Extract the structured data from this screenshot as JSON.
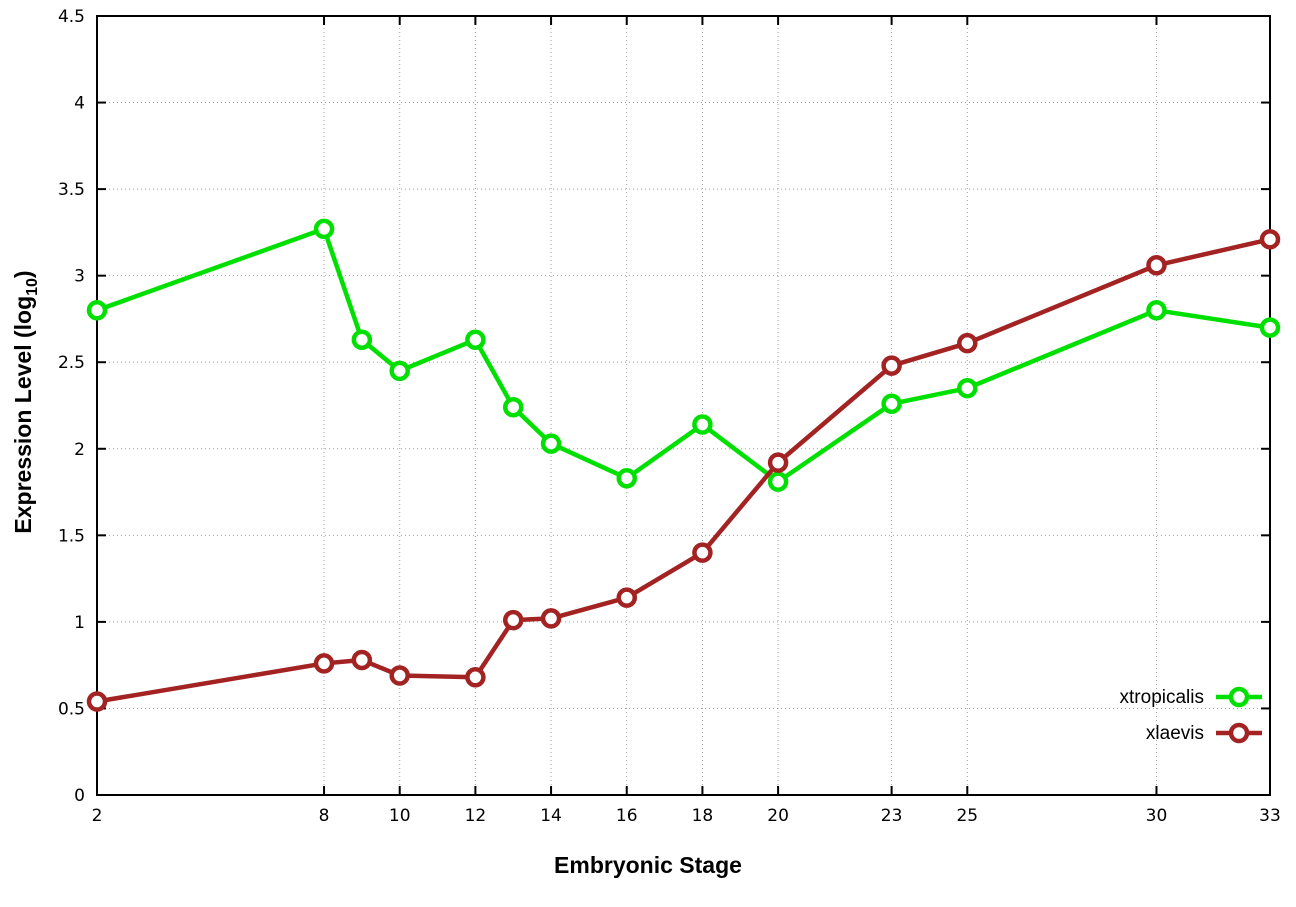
{
  "chart_data": {
    "type": "line",
    "title": "",
    "xlabel": "Embryonic Stage",
    "ylabel": "Expression Level (log10)",
    "ylabel_parts": {
      "pre": "Expression Level (log",
      "sub": "10",
      "post": ")"
    },
    "xlim": [
      2,
      33
    ],
    "ylim": [
      0,
      4.5
    ],
    "x_ticks": [
      2,
      8,
      10,
      12,
      14,
      16,
      18,
      20,
      23,
      25,
      30,
      33
    ],
    "y_ticks": [
      0,
      0.5,
      1,
      1.5,
      2,
      2.5,
      3,
      3.5,
      4,
      4.5
    ],
    "grid": true,
    "legend_position": "bottom-right-inside",
    "x": [
      2,
      8,
      9,
      10,
      12,
      13,
      14,
      16,
      18,
      20,
      23,
      25,
      30,
      33
    ],
    "series": [
      {
        "name": "xtropicalis",
        "color": "#00e000",
        "values": [
          2.8,
          3.27,
          2.63,
          2.45,
          2.63,
          2.24,
          2.03,
          1.83,
          2.14,
          1.81,
          2.26,
          2.35,
          2.8,
          2.7
        ]
      },
      {
        "name": "xlaevis",
        "color": "#a32222",
        "values": [
          0.54,
          0.76,
          0.78,
          0.69,
          0.68,
          1.01,
          1.02,
          1.14,
          1.4,
          1.92,
          2.48,
          2.61,
          3.06,
          3.21
        ]
      }
    ],
    "colors": {
      "xtropicalis": "#00e000",
      "xlaevis": "#a32222",
      "grid": "#a0a0a0",
      "axis": "#000000"
    }
  }
}
